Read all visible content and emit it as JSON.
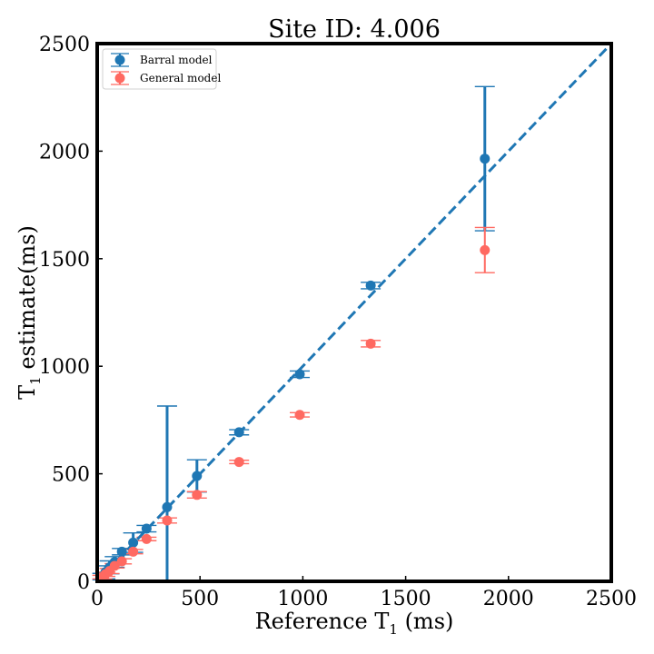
{
  "chart_data": {
    "type": "scatter",
    "title": "Site ID: 4.006",
    "xlabel": {
      "prefix": "Reference T",
      "sub": "1",
      "suffix": " (ms)"
    },
    "ylabel": {
      "prefix": "T",
      "sub": "1",
      "suffix": " estimate(ms)"
    },
    "xlim": [
      0,
      2500
    ],
    "ylim": [
      0,
      2500
    ],
    "xticks": [
      "0",
      "500",
      "1000",
      "1500",
      "2000",
      "2500"
    ],
    "yticks": [
      "0",
      "500",
      "1000",
      "1500",
      "2000",
      "2500"
    ],
    "grid": false,
    "legend_position": "upper-left",
    "identity_line": {
      "from": [
        0,
        0
      ],
      "to": [
        2500,
        2500
      ],
      "style": "dashed",
      "color": "#1f77b4"
    },
    "series": [
      {
        "name": "Barral model",
        "color": "#1f77b4",
        "points": [
          {
            "x": 25,
            "y": 22,
            "err": 15
          },
          {
            "x": 40,
            "y": 42,
            "err": 30
          },
          {
            "x": 60,
            "y": 65,
            "err": 30
          },
          {
            "x": 85,
            "y": 90,
            "err": 25
          },
          {
            "x": 120,
            "y": 138,
            "err": 15
          },
          {
            "x": 175,
            "y": 180,
            "err": 45
          },
          {
            "x": 240,
            "y": 245,
            "err": 15
          },
          {
            "x": 340,
            "y": 345,
            "err": 470
          },
          {
            "x": 485,
            "y": 490,
            "err": 75
          },
          {
            "x": 690,
            "y": 693,
            "err": 12
          },
          {
            "x": 985,
            "y": 963,
            "err": 15
          },
          {
            "x": 1330,
            "y": 1375,
            "err": 15
          },
          {
            "x": 1885,
            "y": 1965,
            "err": 335
          }
        ]
      },
      {
        "name": "General model",
        "color": "#ff6961",
        "points": [
          {
            "x": 25,
            "y": 20,
            "err": 8
          },
          {
            "x": 40,
            "y": 33,
            "err": 10
          },
          {
            "x": 60,
            "y": 48,
            "err": 12
          },
          {
            "x": 85,
            "y": 72,
            "err": 10
          },
          {
            "x": 120,
            "y": 93,
            "err": 12
          },
          {
            "x": 175,
            "y": 138,
            "err": 10
          },
          {
            "x": 240,
            "y": 197,
            "err": 8
          },
          {
            "x": 340,
            "y": 283,
            "err": 12
          },
          {
            "x": 485,
            "y": 402,
            "err": 15
          },
          {
            "x": 690,
            "y": 555,
            "err": 8
          },
          {
            "x": 985,
            "y": 774,
            "err": 10
          },
          {
            "x": 1330,
            "y": 1105,
            "err": 15
          },
          {
            "x": 1885,
            "y": 1540,
            "err": 105
          }
        ]
      }
    ]
  }
}
